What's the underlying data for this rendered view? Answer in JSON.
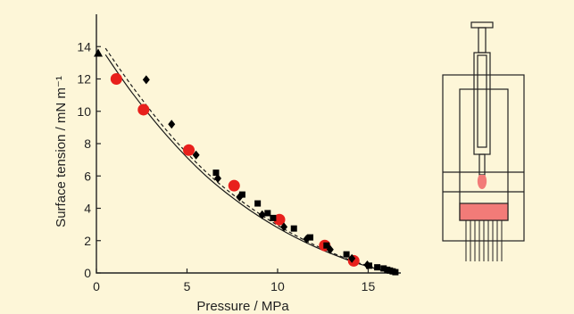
{
  "chart_data": {
    "type": "scatter",
    "xlabel": "Pressure / MPa",
    "ylabel": "Surface tension / mN m⁻¹",
    "xlim": [
      0,
      16.8
    ],
    "ylim": [
      0,
      16
    ],
    "xticks": [
      0,
      5,
      10,
      15
    ],
    "yticks": [
      0,
      2,
      4,
      6,
      8,
      10,
      12,
      14
    ],
    "grid": false,
    "legend": "none",
    "series": [
      {
        "marker": "circle",
        "color": "#e8201c",
        "x": [
          1.1,
          2.6,
          5.1,
          7.6,
          10.1,
          12.6,
          14.2
        ],
        "y": [
          12.0,
          10.1,
          7.6,
          5.4,
          3.3,
          1.7,
          0.75
        ]
      },
      {
        "marker": "diamond",
        "color": "#000000",
        "x": [
          2.75,
          4.15,
          5.5,
          6.7,
          7.9,
          9.15,
          10.35,
          11.6,
          12.9,
          14.1,
          14.95
        ],
        "y": [
          11.95,
          9.2,
          7.3,
          5.85,
          4.7,
          3.6,
          2.85,
          2.1,
          1.45,
          0.9,
          0.5
        ]
      },
      {
        "marker": "square",
        "color": "#000000",
        "x": [
          6.6,
          8.05,
          8.9,
          9.45,
          9.75,
          10.9,
          11.8,
          12.7,
          13.8,
          15.05,
          15.5,
          15.85,
          16.05,
          16.2,
          16.35,
          16.5
        ],
        "y": [
          6.2,
          4.85,
          4.3,
          3.7,
          3.4,
          2.75,
          2.2,
          1.7,
          1.15,
          0.45,
          0.35,
          0.28,
          0.2,
          0.15,
          0.1,
          0.05
        ]
      },
      {
        "marker": "triangle",
        "color": "#000000",
        "x": [
          0.1
        ],
        "y": [
          13.6
        ]
      },
      {
        "style": "solid-line",
        "color": "#1a1a1a",
        "x": [
          0.5,
          2,
          4,
          6,
          8,
          10,
          12,
          14,
          15,
          16,
          16.6
        ],
        "y": [
          13.5,
          11.1,
          8.35,
          6.05,
          4.25,
          2.8,
          1.65,
          0.75,
          0.4,
          0.1,
          0.0
        ]
      },
      {
        "style": "dashed-line",
        "color": "#1a1a1a",
        "x": [
          0.5,
          2,
          4,
          6,
          8,
          10,
          12,
          14,
          15,
          16,
          16.6
        ],
        "y": [
          13.9,
          11.5,
          8.65,
          6.3,
          4.45,
          2.95,
          1.75,
          0.8,
          0.45,
          0.12,
          0.0
        ]
      }
    ]
  },
  "apparatus": {
    "icon": "pendant-drop-cell-schematic",
    "drop_color": "#f27b78",
    "liquid_color": "#f27b78"
  }
}
